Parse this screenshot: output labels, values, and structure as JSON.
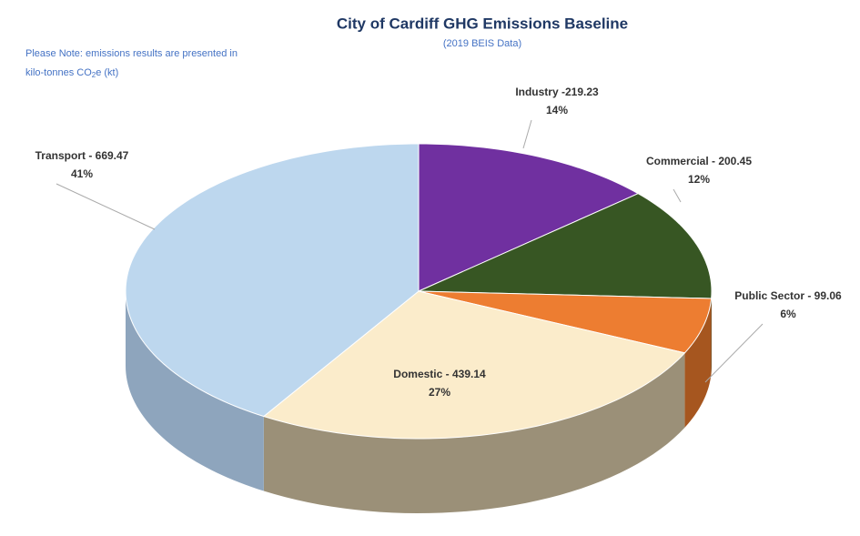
{
  "chart_data": {
    "type": "pie",
    "title": "City of Cardiff GHG Emissions Baseline",
    "subtitle": "(2019 BEIS Data)",
    "note": {
      "line1": "Please Note: emissions results are presented in",
      "line2": [
        "kilo-tonnes CO",
        "2",
        "e (kt)"
      ]
    },
    "categories": [
      "Industry -219.23",
      "Commercial - 200.45",
      "Public Sector - 99.06",
      "Domestic - 439.14",
      "Transport - 669.47"
    ],
    "values": [
      219.23,
      200.45,
      99.06,
      439.14,
      669.47
    ],
    "percents": [
      14,
      12,
      6,
      27,
      41
    ],
    "percent_labels": [
      "14%",
      "12%",
      "6%",
      "27%",
      "41%"
    ],
    "colors": [
      "#7030a0",
      "#375623",
      "#ed7d31",
      "#fbeccb",
      "#bdd7ee"
    ],
    "side_colors": [
      "#4b1f6e",
      "#24391a",
      "#a6561f",
      "#9b9078",
      "#8ea5bd"
    ]
  }
}
